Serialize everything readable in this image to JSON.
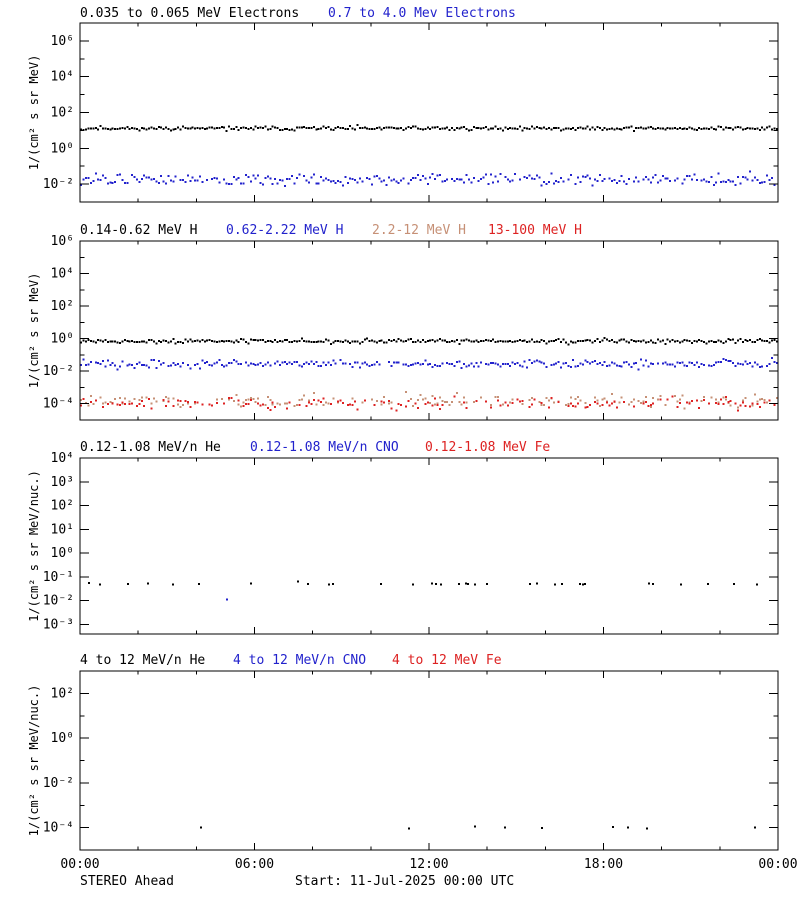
{
  "figure": {
    "background": "#ffffff",
    "footer": {
      "left": "STEREO Ahead",
      "center": "Start: 11-Jul-2025 00:00 UTC"
    }
  },
  "chart_data": {
    "type": "scatter",
    "description": "STEREO Ahead energetic particle flux vs time, 4 stacked log panels, 24 hours",
    "x": {
      "unit": "hours UTC",
      "min": 0,
      "max": 24,
      "major_ticks": [
        0,
        6,
        12,
        18,
        24
      ],
      "minor_tick_step": 2,
      "tick_labels": [
        "00:00",
        "06:00",
        "12:00",
        "18:00",
        "00:00"
      ]
    },
    "panels": [
      {
        "ylabel": "1/(cm² s sr MeV)",
        "ylog_min": -3,
        "ylog_max": 7,
        "ytick_exponents_labeled": [
          6,
          4,
          2,
          0,
          -2
        ],
        "series": [
          {
            "label": "0.035 to 0.065 MeV Electrons",
            "color": "#000000",
            "kind": "band",
            "mean_flux": 13,
            "scatter_decades": 0.06,
            "points_per_day": 288,
            "fill_fraction": 1.0,
            "seed": 11
          },
          {
            "label": "0.7 to 4.0 Mev Electrons",
            "color": "#2222cc",
            "kind": "band",
            "mean_flux": 0.018,
            "scatter_decades": 0.16,
            "points_per_day": 288,
            "fill_fraction": 0.93,
            "seed": 12
          }
        ]
      },
      {
        "ylabel": "1/(cm² s sr MeV)",
        "ylog_min": -5,
        "ylog_max": 6,
        "ytick_exponents_labeled": [
          6,
          4,
          2,
          0,
          -2,
          -4
        ],
        "series": [
          {
            "label": "0.14-0.62 MeV H",
            "color": "#000000",
            "kind": "band",
            "mean_flux": 0.7,
            "scatter_decades": 0.07,
            "points_per_day": 288,
            "fill_fraction": 1.0,
            "seed": 21
          },
          {
            "label": "0.62-2.22 MeV H",
            "color": "#2222cc",
            "kind": "band",
            "mean_flux": 0.028,
            "scatter_decades": 0.13,
            "points_per_day": 288,
            "fill_fraction": 0.95,
            "seed": 22
          },
          {
            "label": "2.2-12 MeV H",
            "color": "#c69076",
            "kind": "band",
            "mean_flux": 0.00015,
            "scatter_decades": 0.2,
            "points_per_day": 288,
            "fill_fraction": 0.6,
            "seed": 23
          },
          {
            "label": "13-100 MeV H",
            "color": "#dd2222",
            "kind": "band",
            "mean_flux": 0.0001,
            "scatter_decades": 0.17,
            "points_per_day": 288,
            "fill_fraction": 0.6,
            "seed": 24
          }
        ]
      },
      {
        "ylabel": "1/(cm² s sr MeV/nuc.)",
        "ylog_min": -3.4,
        "ylog_max": 4,
        "ytick_exponents_labeled": [
          4,
          3,
          2,
          1,
          0,
          -1,
          -2,
          -3
        ],
        "series": [
          {
            "label": "0.12-1.08 MeV/n He",
            "color": "#000000",
            "kind": "points",
            "hours": [
              0.31,
              0.69,
              1.65,
              2.34,
              3.2,
              4.09,
              5.88,
              7.5,
              7.84,
              8.56,
              8.7,
              10.35,
              11.45,
              12.1,
              12.24,
              12.41,
              13.03,
              13.27,
              13.34,
              13.58,
              14.0,
              15.47,
              15.71,
              16.33,
              16.57,
              17.19,
              17.3,
              17.37,
              19.57,
              19.7,
              20.67,
              21.59,
              22.49,
              23.28
            ],
            "flux": [
              0.055,
              0.048,
              0.05,
              0.052,
              0.047,
              0.05,
              0.053,
              0.065,
              0.05,
              0.049,
              0.051,
              0.05,
              0.048,
              0.052,
              0.05,
              0.047,
              0.05,
              0.053,
              0.05,
              0.049,
              0.051,
              0.05,
              0.052,
              0.048,
              0.05,
              0.051,
              0.049,
              0.05,
              0.052,
              0.05,
              0.048,
              0.05,
              0.051,
              0.049
            ]
          },
          {
            "label": "0.12-1.08 MeV/n CNO",
            "color": "#2222cc",
            "kind": "points",
            "hours": [
              5.05
            ],
            "flux": [
              0.011
            ]
          },
          {
            "label": "0.12-1.08 MeV Fe",
            "color": "#dd2222",
            "kind": "points",
            "hours": [],
            "flux": []
          }
        ]
      },
      {
        "ylabel": "1/(cm² s sr MeV/nuc.)",
        "ylog_min": -5,
        "ylog_max": 3,
        "ytick_exponents_labeled": [
          2,
          0,
          -2,
          -4
        ],
        "series": [
          {
            "label": "4 to 12 MeV/n He",
            "color": "#000000",
            "kind": "points",
            "hours": [
              4.16,
              11.31,
              13.58,
              14.61,
              15.89,
              18.33,
              18.84,
              19.5,
              23.21
            ],
            "flux": [
              0.0001,
              9e-05,
              0.00011,
              0.0001,
              9.5e-05,
              0.000105,
              0.0001,
              9e-05,
              0.0001
            ]
          },
          {
            "label": "4 to 12 MeV/n CNO",
            "color": "#2222cc",
            "kind": "points",
            "hours": [],
            "flux": []
          },
          {
            "label": "4 to 12 MeV Fe",
            "color": "#dd2222",
            "kind": "points",
            "hours": [],
            "flux": []
          }
        ]
      }
    ]
  }
}
